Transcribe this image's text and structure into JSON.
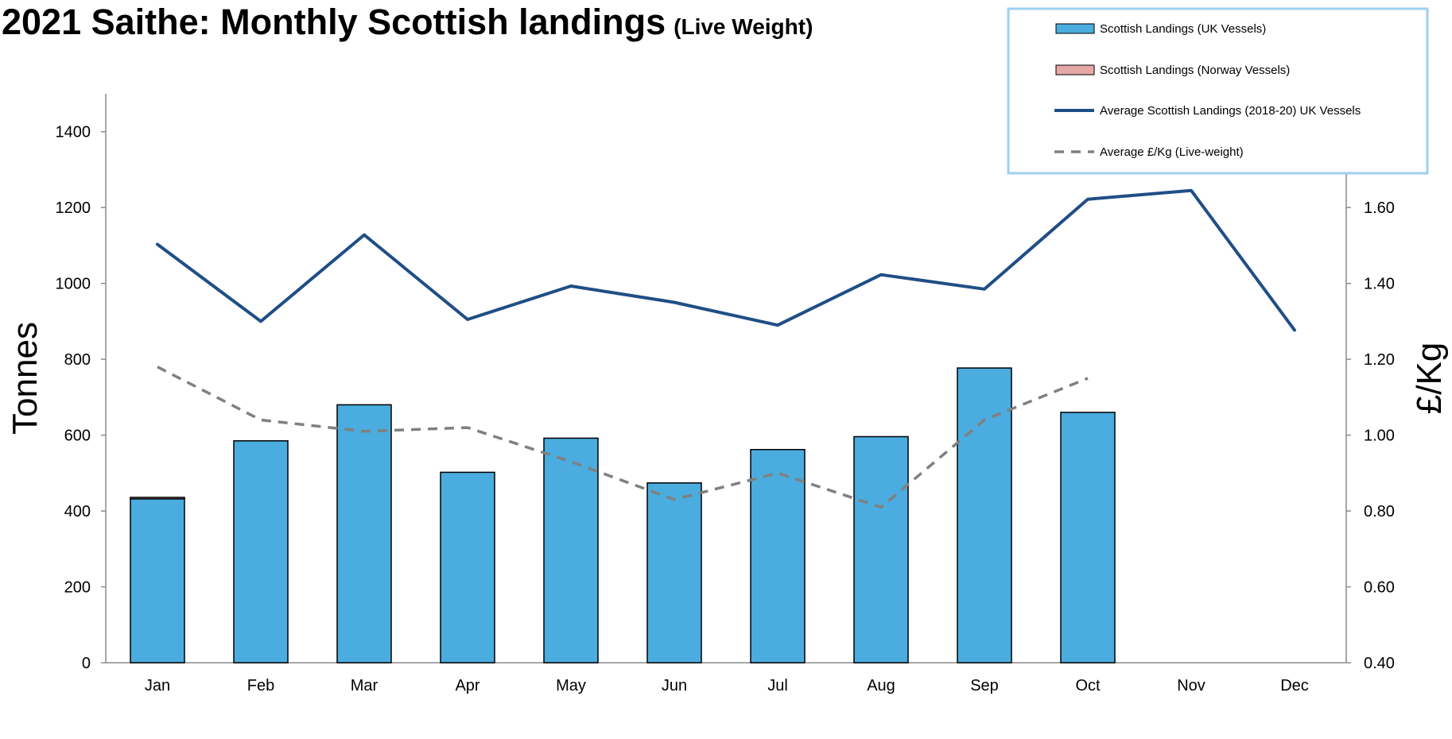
{
  "chart_data": {
    "type": "bar",
    "title": "2021 Saithe: Monthly Scottish landings",
    "subtitle": "(Live Weight)",
    "categories": [
      "Jan",
      "Feb",
      "Mar",
      "Apr",
      "May",
      "Jun",
      "Jul",
      "Aug",
      "Sep",
      "Oct",
      "Nov",
      "Dec"
    ],
    "ylabel": "Tonnes",
    "y2label": "£/Kg",
    "ylim": [
      0,
      1500
    ],
    "yticks": [
      "0",
      "200",
      "400",
      "600",
      "800",
      "1000",
      "1200",
      "1400"
    ],
    "y2lim": [
      0.4,
      1.9
    ],
    "y2ticks": [
      "0.40",
      "0.60",
      "0.80",
      "1.00",
      "1.20",
      "1.40",
      "1.60"
    ],
    "grid": false,
    "legend_position": "top-right",
    "series": [
      {
        "name": "Scottish Landings (UK Vessels)",
        "type": "bar",
        "axis": "left",
        "color": "#4BACDF",
        "values": [
          432,
          585,
          680,
          502,
          592,
          474,
          562,
          596,
          777,
          660,
          null,
          null
        ]
      },
      {
        "name": "Scottish Landings (Norway Vessels)",
        "type": "bar",
        "axis": "left",
        "color": "#E6A8A6",
        "values": [
          4,
          0,
          0,
          0,
          0,
          0,
          0,
          0,
          0,
          0,
          null,
          null
        ]
      },
      {
        "name": "Average Scottish Landings  (2018-20) UK Vessels",
        "type": "line",
        "axis": "left",
        "color": "#1F4E86",
        "values": [
          1103,
          900,
          1128,
          905,
          993,
          950,
          890,
          1023,
          985,
          1222,
          1245,
          877
        ]
      },
      {
        "name": "Average £/Kg (Live-weight)",
        "type": "line",
        "dashed": true,
        "axis": "right",
        "color": "#808080",
        "values": [
          1.18,
          1.04,
          1.01,
          1.02,
          0.93,
          0.83,
          0.9,
          0.81,
          1.04,
          1.15,
          null,
          null
        ]
      }
    ]
  }
}
